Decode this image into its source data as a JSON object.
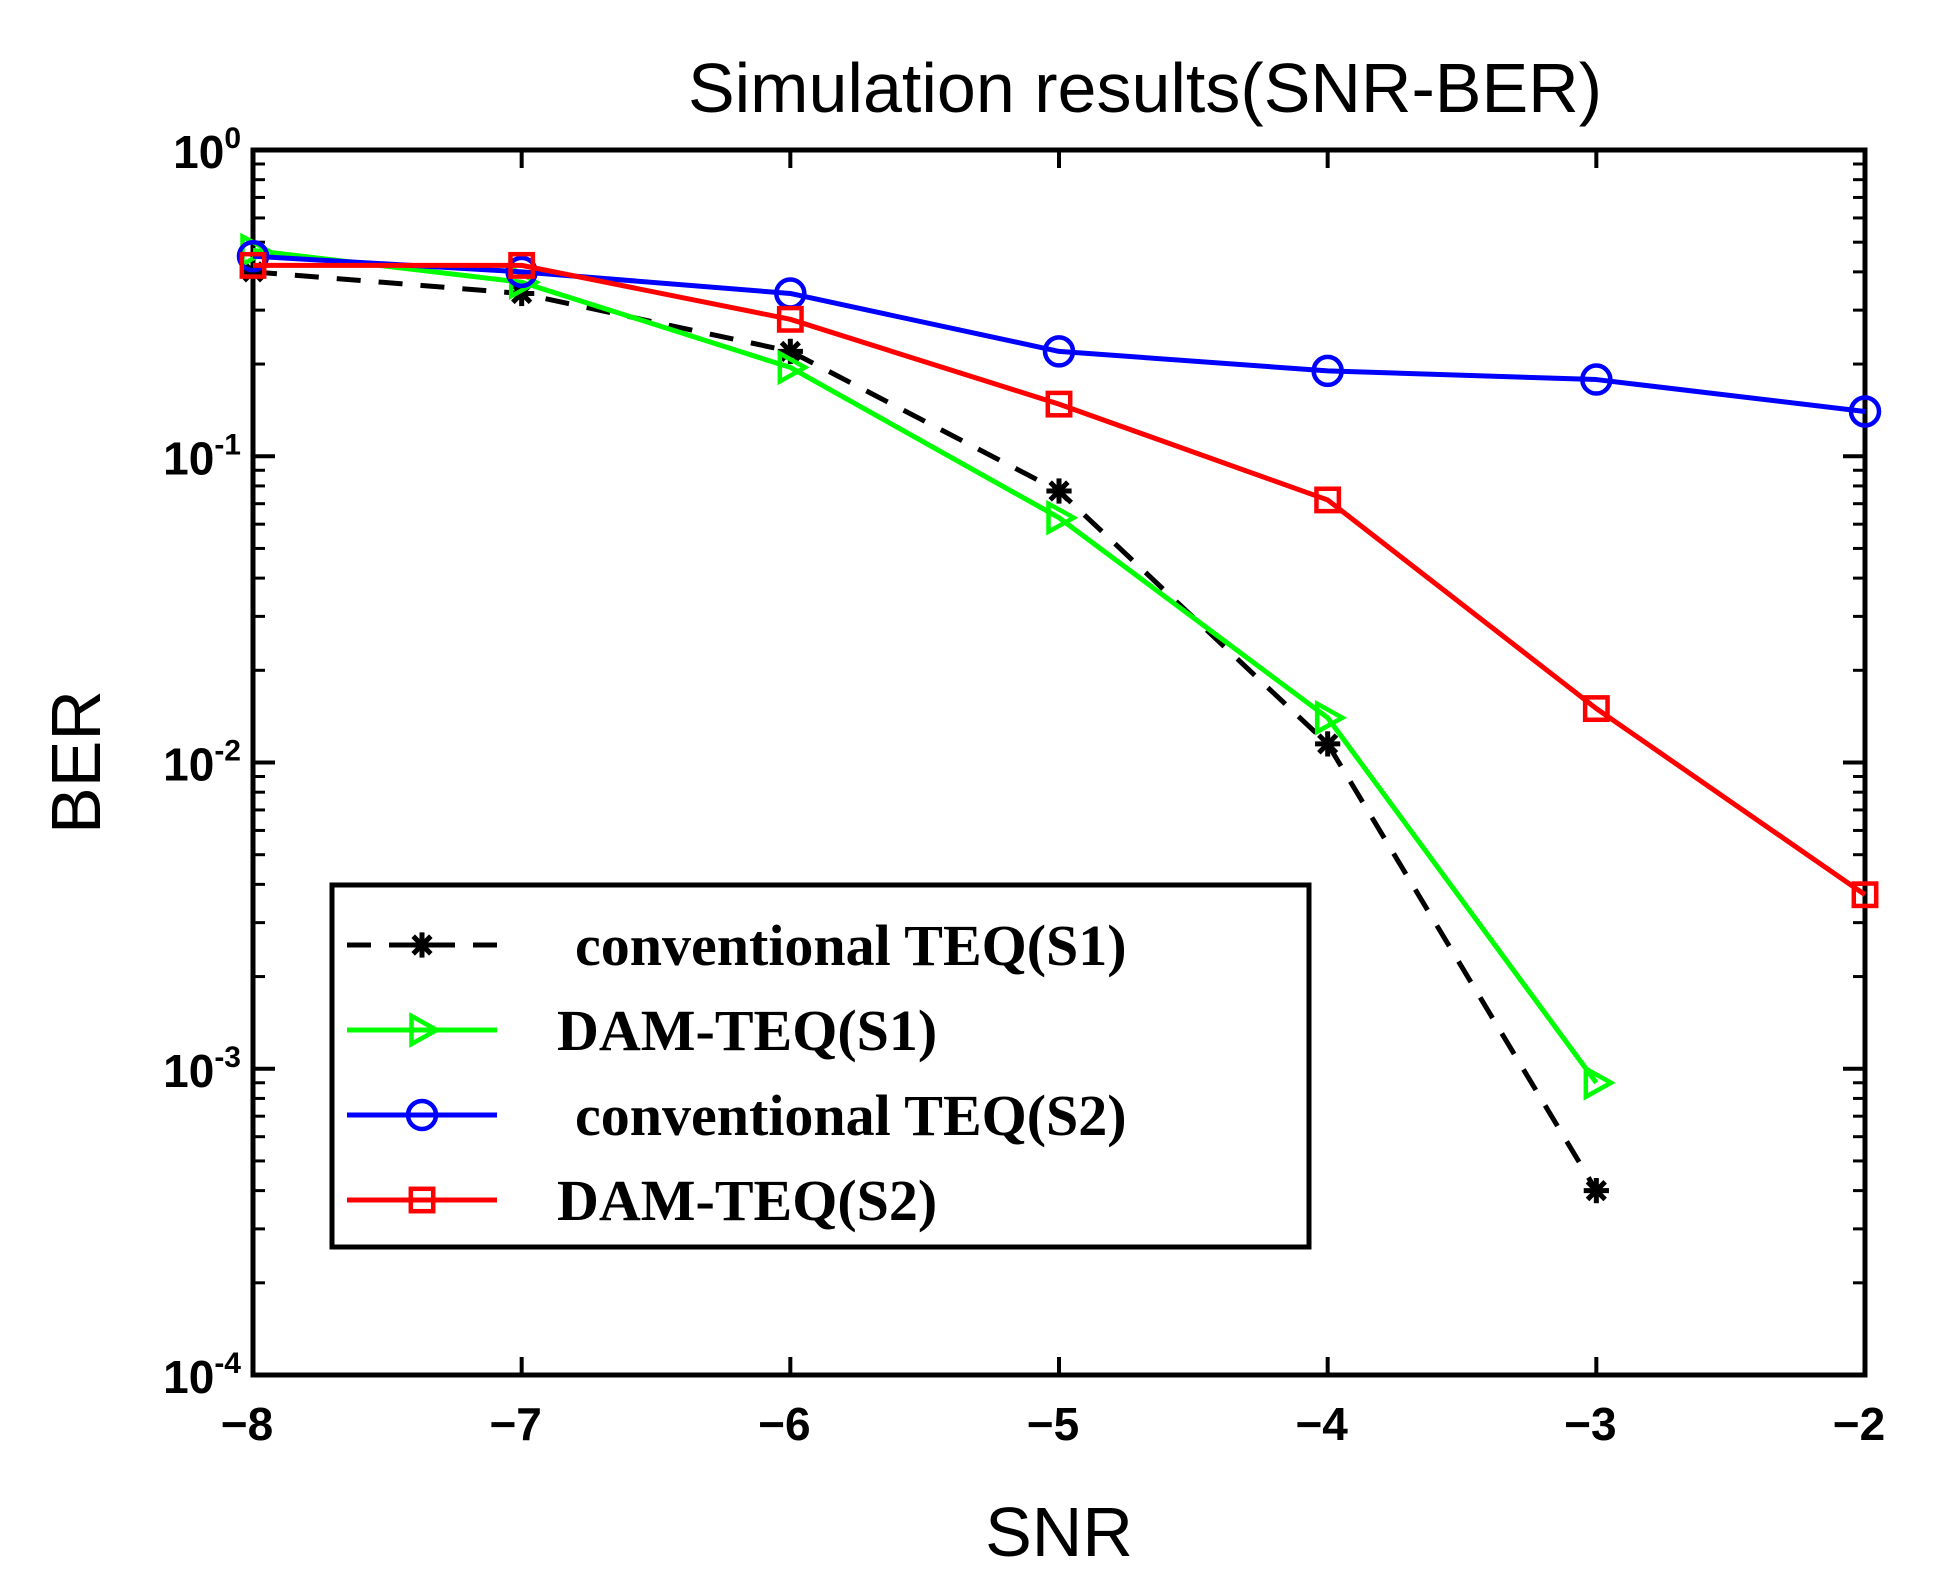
{
  "chart_data": {
    "type": "line",
    "title": "Simulation results(SNR-BER)",
    "xlabel": "SNR",
    "ylabel": "BER",
    "xlim": [
      -8,
      -2
    ],
    "ylim": [
      0.0001,
      1
    ],
    "yscale": "log",
    "x_ticks": [
      "−8",
      "−7",
      "−6",
      "−5",
      "−4",
      "−3",
      "−2"
    ],
    "x_tick_values": [
      -8,
      -7,
      -6,
      -5,
      -4,
      -3,
      -2
    ],
    "y_ticks": [
      {
        "base": "10",
        "exp": "0",
        "value": 1
      },
      {
        "base": "10",
        "exp": "-1",
        "value": 0.1
      },
      {
        "base": "10",
        "exp": "-2",
        "value": 0.01
      },
      {
        "base": "10",
        "exp": "-3",
        "value": 0.001
      },
      {
        "base": "10",
        "exp": "-4",
        "value": 0.0001
      }
    ],
    "legend_position": "lower-left",
    "series": [
      {
        "name": " conventional TEQ(S1)",
        "color": "#000000",
        "line_style": "dashed",
        "marker": "asterisk",
        "x": [
          -8,
          -7,
          -6,
          -5,
          -4,
          -3
        ],
        "values": [
          0.4,
          0.34,
          0.22,
          0.077,
          0.0115,
          0.0004
        ]
      },
      {
        "name": "DAM-TEQ(S1)",
        "color": "#00ff00",
        "line_style": "solid",
        "marker": "triangle-right",
        "x": [
          -8,
          -7,
          -6,
          -5,
          -4,
          -3
        ],
        "values": [
          0.47,
          0.37,
          0.195,
          0.063,
          0.014,
          0.0009
        ]
      },
      {
        "name": " conventional TEQ(S2)",
        "color": "#0000ff",
        "line_style": "solid",
        "marker": "circle",
        "x": [
          -8,
          -7,
          -6,
          -5,
          -4,
          -3,
          -2
        ],
        "values": [
          0.45,
          0.4,
          0.34,
          0.22,
          0.19,
          0.178,
          0.14
        ]
      },
      {
        "name": "DAM-TEQ(S2)",
        "color": "#ff0000",
        "line_style": "solid",
        "marker": "square",
        "x": [
          -8,
          -7,
          -6,
          -5,
          -4,
          -3,
          -2
        ],
        "values": [
          0.42,
          0.42,
          0.28,
          0.148,
          0.072,
          0.015,
          0.0037
        ]
      }
    ]
  }
}
